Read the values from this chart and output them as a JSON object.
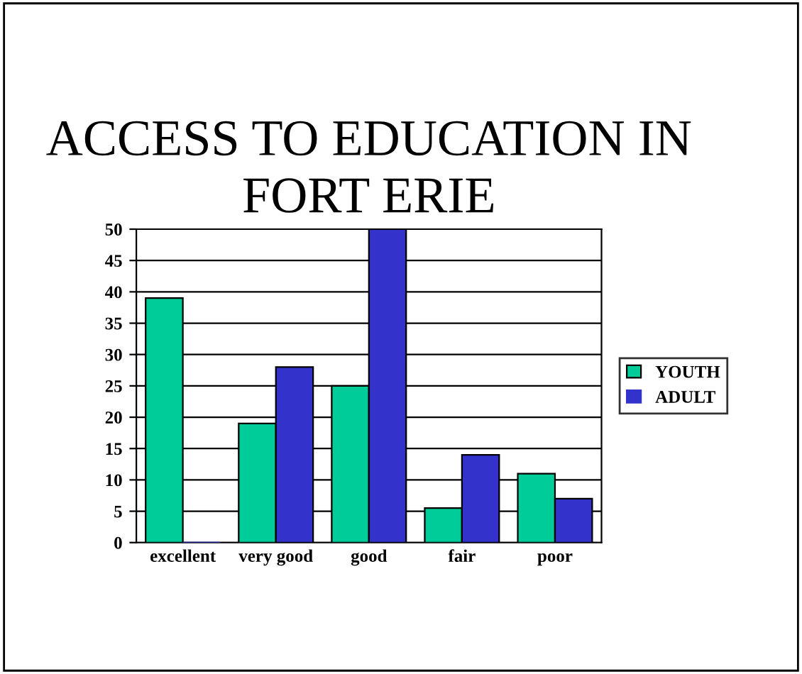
{
  "chart_data": {
    "type": "bar",
    "title": "ACCESS TO EDUCATION IN FORT ERIE",
    "categories": [
      "excellent",
      "very good",
      "good",
      "fair",
      "poor"
    ],
    "series": [
      {
        "name": "YOUTH",
        "color": "#00cc99",
        "values": [
          39,
          19,
          25,
          5.5,
          11
        ]
      },
      {
        "name": "ADULT",
        "color": "#3333cc",
        "values": [
          0,
          28,
          50,
          14,
          7
        ]
      }
    ],
    "ylim": [
      0,
      50
    ],
    "yticks": [
      0,
      5,
      10,
      15,
      20,
      25,
      30,
      35,
      40,
      45,
      50
    ],
    "grid": "y",
    "legend": "right"
  }
}
